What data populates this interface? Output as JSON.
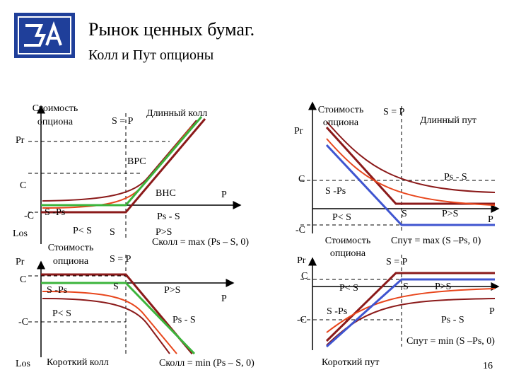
{
  "header": {
    "title": "Рынок ценных бумаг.",
    "subtitle": "Колл и Пут опционы"
  },
  "long_call": {
    "labels": [
      "Стоимость",
      "опциона",
      "S = P",
      "Длинный колл",
      "Pr",
      "ВРС",
      "C",
      "ВНС",
      "P",
      "-C",
      "S -Ps",
      "Ps - S",
      "Los",
      "P< S",
      "S",
      "P>S",
      "Cколл = max (Ps – S, 0)"
    ]
  },
  "short_call": {
    "labels": [
      "Стоимость",
      "опциона",
      "S = P",
      "Pr",
      "C",
      "S -Ps",
      "S",
      "P>S",
      "P",
      "P< S",
      "Ps - S",
      "-C",
      "Los",
      "Короткий колл",
      "Cколл = min (Ps – S, 0)"
    ]
  },
  "long_put": {
    "labels": [
      "Стоимость",
      "опциона",
      "S = P",
      "Длинный пут",
      "Pr",
      "C",
      "Ps - S",
      "S -Ps",
      "P< S",
      "S",
      "P>S",
      "P",
      "-C",
      "Cпут = max (S –Ps, 0)"
    ]
  },
  "short_put": {
    "labels": [
      "Стоимость",
      "опциона",
      "S = P",
      "Pr",
      "C",
      "P< S",
      "S",
      "P>S",
      "P",
      "S -Ps",
      "Ps - S",
      "-C",
      "Cпут = min (S –Ps, 0)",
      "Короткий пут"
    ]
  },
  "page_number": "16"
}
